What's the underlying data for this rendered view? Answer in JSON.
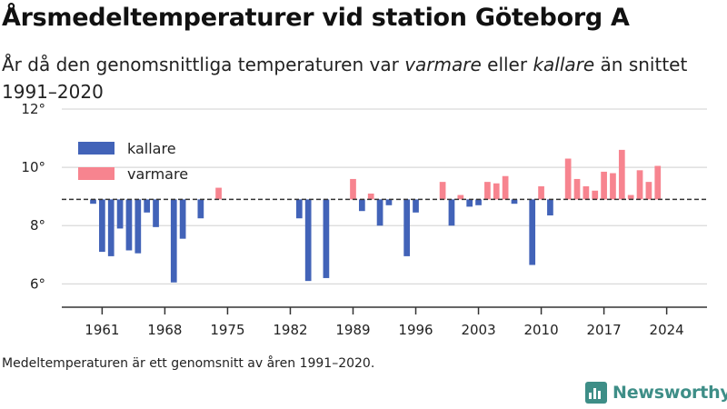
{
  "header": {
    "title": "Årsmedeltemperaturer vid station Göteborg A",
    "subtitle_pre": "År då den genomsnittliga temperaturen var ",
    "subtitle_warm": "varmare",
    "subtitle_mid": " eller ",
    "subtitle_cold": "kallare",
    "subtitle_post": " än snittet 1991–2020"
  },
  "footnote": "Medeltemperaturen är ett genomsnitt av åren 1991–2020.",
  "brand": {
    "name": "Newsworthy",
    "color": "#3e8e87"
  },
  "colors": {
    "cold": "#4263b8",
    "warm": "#f7848f",
    "axis": "#333333",
    "grid": "#d9d9d9"
  },
  "chart_data": {
    "type": "bar",
    "baseline": 8.9,
    "ylim": [
      5.2,
      12
    ],
    "yticks": [
      6,
      8,
      10,
      12
    ],
    "ytick_labels": [
      "6°",
      "8°",
      "10°",
      "12°"
    ],
    "xlim": [
      1956.5,
      2028.5
    ],
    "xticks": [
      1961,
      1968,
      1975,
      1982,
      1989,
      1996,
      2003,
      2010,
      2017,
      2024
    ],
    "xtick_labels": [
      "1961",
      "1968",
      "1975",
      "1982",
      "1989",
      "1996",
      "2003",
      "2010",
      "2017",
      "2024"
    ],
    "legend": {
      "position": "top-left",
      "entries": [
        {
          "label": "kallare",
          "color": "#4263b8"
        },
        {
          "label": "varmare",
          "color": "#f7848f"
        }
      ]
    },
    "years": [
      1960,
      1961,
      1962,
      1963,
      1964,
      1965,
      1966,
      1967,
      1969,
      1970,
      1972,
      1974,
      1983,
      1984,
      1986,
      1989,
      1990,
      1991,
      1992,
      1993,
      1995,
      1996,
      1999,
      2000,
      2001,
      2002,
      2003,
      2004,
      2005,
      2006,
      2007,
      2009,
      2010,
      2011,
      2013,
      2014,
      2015,
      2016,
      2017,
      2018,
      2019,
      2020,
      2021,
      2022,
      2023
    ],
    "values": [
      8.75,
      7.1,
      6.95,
      7.9,
      7.15,
      7.05,
      8.45,
      7.95,
      6.05,
      7.55,
      8.25,
      9.3,
      8.25,
      6.1,
      6.2,
      9.6,
      8.5,
      9.1,
      8.0,
      8.7,
      6.95,
      8.45,
      9.5,
      8.0,
      9.05,
      8.65,
      8.7,
      9.5,
      9.45,
      9.7,
      8.75,
      6.65,
      9.35,
      8.35,
      10.3,
      9.6,
      9.35,
      9.2,
      9.85,
      9.8,
      10.6,
      9.05,
      9.9,
      9.5,
      10.05
    ]
  }
}
